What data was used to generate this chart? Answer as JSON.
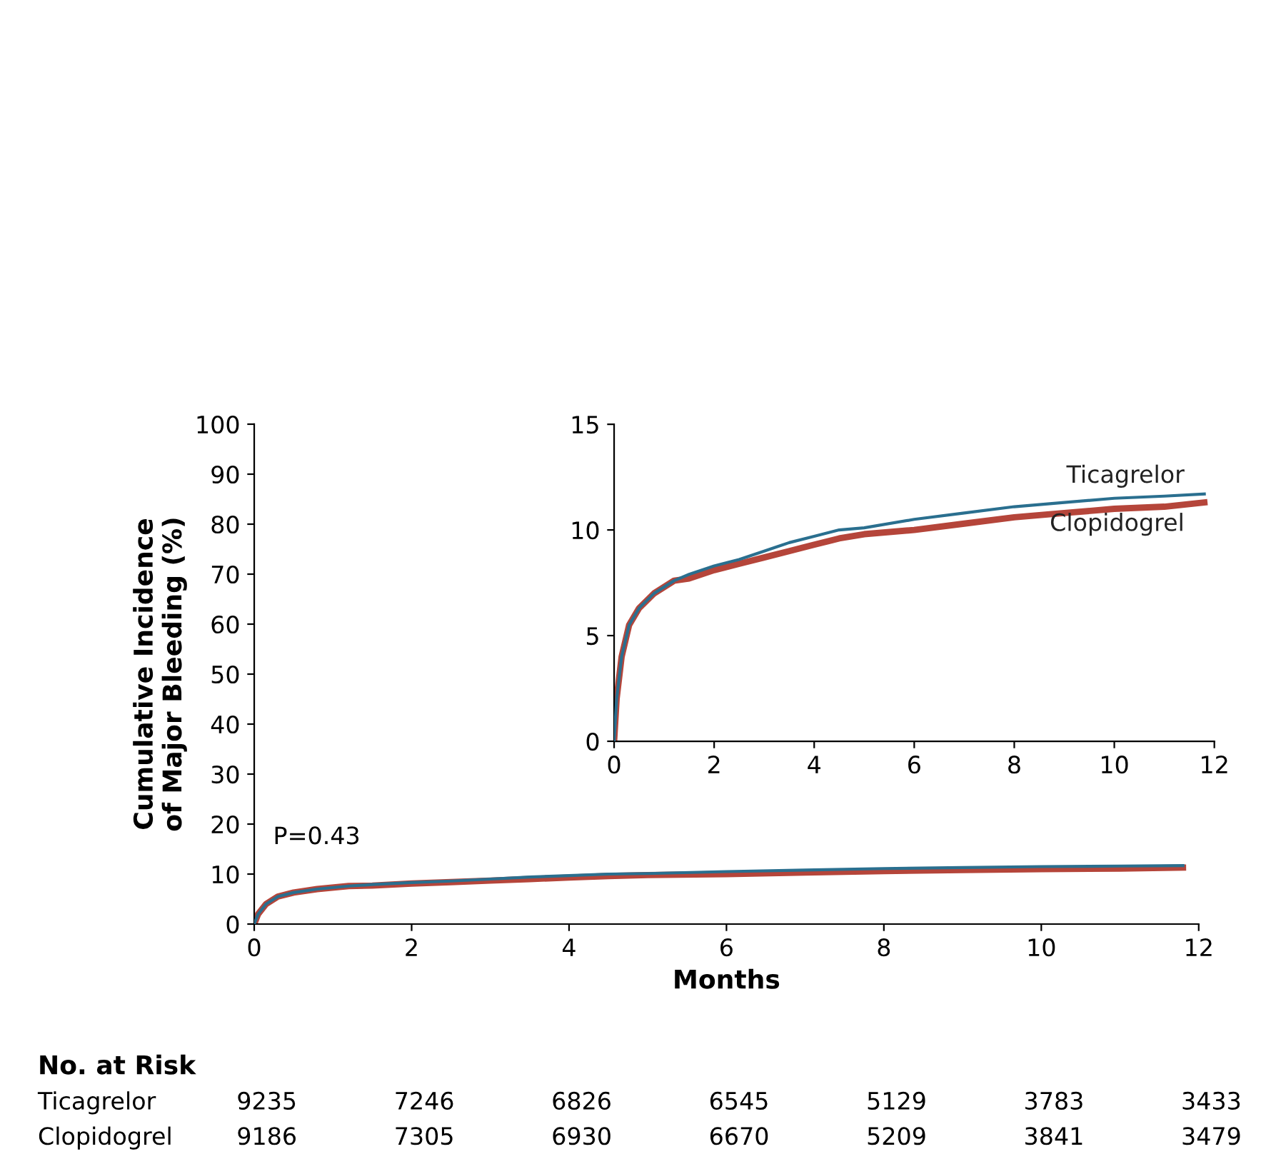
{
  "chart_data": [
    {
      "type": "line",
      "xlabel": "Months",
      "ylabel": "Cumulative Incidence\nof Major Bleeding (%)",
      "xlim": [
        0,
        12
      ],
      "ylim": [
        0,
        100
      ],
      "xticks": [
        0,
        2,
        4,
        6,
        8,
        10,
        12
      ],
      "yticks": [
        0,
        10,
        20,
        30,
        40,
        50,
        60,
        70,
        80,
        90,
        100
      ],
      "x": [
        0,
        0.05,
        0.15,
        0.3,
        0.5,
        0.8,
        1.2,
        1.5,
        2,
        2.5,
        3,
        3.5,
        4,
        4.5,
        5,
        6,
        7,
        8,
        9,
        10,
        11,
        11.8
      ],
      "series": [
        {
          "color": "#2a6f8f",
          "values": [
            0,
            2,
            4,
            5.5,
            6.3,
            7,
            7.6,
            7.9,
            8.3,
            8.6,
            9.0,
            9.4,
            9.7,
            10.0,
            10.1,
            10.5,
            10.8,
            11.1,
            11.3,
            11.5,
            11.6,
            11.7
          ]
        },
        {
          "color": "#b5453a",
          "values": [
            0,
            2,
            4,
            5.5,
            6.3,
            7,
            7.6,
            7.7,
            8.1,
            8.4,
            8.7,
            9.0,
            9.3,
            9.6,
            9.8,
            10.0,
            10.3,
            10.6,
            10.8,
            11.0,
            11.1,
            11.3
          ]
        }
      ],
      "annotations": [
        "P=0.43",
        "No. at Risk",
        "Ticagrelor",
        "9235",
        "7246",
        "6826",
        "6545",
        "5129",
        "3783",
        "3433",
        "Clopidogrel",
        "9186",
        "7305",
        "6930",
        "6670",
        "5209",
        "3841",
        "3479"
      ]
    },
    {
      "type": "line",
      "xlim": [
        0,
        12
      ],
      "ylim": [
        0,
        15
      ],
      "xticks": [
        0,
        2,
        4,
        6,
        8,
        10,
        12
      ],
      "yticks": [
        0,
        5,
        10,
        15
      ],
      "x": [
        0,
        0.05,
        0.15,
        0.3,
        0.5,
        0.8,
        1.2,
        1.5,
        2,
        2.5,
        3,
        3.5,
        4,
        4.5,
        5,
        6,
        7,
        8,
        9,
        10,
        11,
        11.8
      ],
      "series": [
        {
          "name": "Ticagrelor",
          "color": "#2a6f8f",
          "values": [
            0,
            2,
            4,
            5.5,
            6.3,
            7,
            7.6,
            7.9,
            8.3,
            8.6,
            9.0,
            9.4,
            9.7,
            10.0,
            10.1,
            10.5,
            10.8,
            11.1,
            11.3,
            11.5,
            11.6,
            11.7
          ]
        },
        {
          "name": "Clopidogrel",
          "color": "#b5453a",
          "values": [
            0,
            2,
            4,
            5.5,
            6.3,
            7,
            7.6,
            7.7,
            8.1,
            8.4,
            8.7,
            9.0,
            9.3,
            9.6,
            9.8,
            10.0,
            10.3,
            10.6,
            10.8,
            11.0,
            11.1,
            11.3
          ]
        }
      ]
    }
  ]
}
